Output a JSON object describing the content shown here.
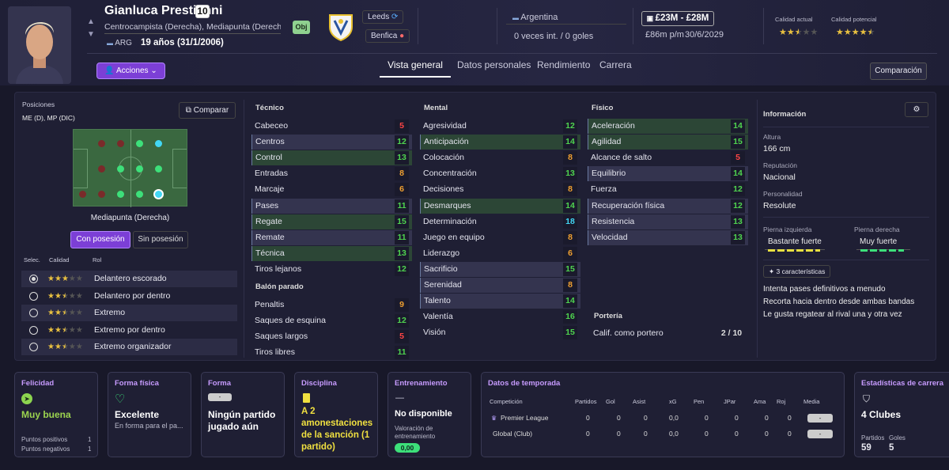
{
  "player": {
    "name": "Gianluca Prestianni",
    "number": "10",
    "positions_text": "Centrocampista (Derecha), Mediapunta (Derecha)",
    "obj": "Obj",
    "nationality_code": "ARG",
    "age": "19 años (31/1/2006)"
  },
  "actions": {
    "label": "Acciones"
  },
  "clubs": {
    "current": "Leeds",
    "parent": "Benfica"
  },
  "international": {
    "country": "Argentina",
    "caps": "0 veces int. / 0 goles"
  },
  "value": {
    "range": "£23M - £28M",
    "wage": "£86m p/m",
    "contract": "30/6/2029"
  },
  "quality": {
    "current_label": "Calidad actual",
    "potential_label": "Calidad potencial",
    "current_stars": 2.5,
    "potential_stars": 4.5
  },
  "tabs": [
    {
      "label": "Vista general"
    },
    {
      "label": "Datos personales"
    },
    {
      "label": "Rendimiento"
    },
    {
      "label": "Carrera"
    }
  ],
  "compare_top": "Comparación",
  "positions": {
    "title": "Posiciones",
    "value": "ME (D), MP (DIC)",
    "compare": "Comparar",
    "role_name": "Mediapunta (Derecha)",
    "with_ball": "Con posesión",
    "without_ball": "Sin posesión"
  },
  "roles_header": {
    "sel": "Selec.",
    "quality": "Calidad",
    "role": "Rol"
  },
  "roles": [
    {
      "name": "Delantero escorado",
      "stars": 3,
      "selected": true
    },
    {
      "name": "Delantero por dentro",
      "stars": 2.5,
      "selected": false
    },
    {
      "name": "Extremo",
      "stars": 2.5,
      "selected": false
    },
    {
      "name": "Extremo por dentro",
      "stars": 2.5,
      "selected": false
    },
    {
      "name": "Extremo organizador",
      "stars": 2.5,
      "selected": false
    }
  ],
  "attributes": {
    "tecnico": {
      "title": "Técnico",
      "items": [
        {
          "name": "Cabeceo",
          "value": "5",
          "state": ""
        },
        {
          "name": "Centros",
          "value": "12",
          "state": "hl"
        },
        {
          "name": "Control",
          "value": "13",
          "state": "key"
        },
        {
          "name": "Entradas",
          "value": "8",
          "state": ""
        },
        {
          "name": "Marcaje",
          "value": "6",
          "state": ""
        },
        {
          "name": "Pases",
          "value": "11",
          "state": "hl"
        },
        {
          "name": "Regate",
          "value": "15",
          "state": "key"
        },
        {
          "name": "Remate",
          "value": "11",
          "state": "hl"
        },
        {
          "name": "Técnica",
          "value": "13",
          "state": "key"
        },
        {
          "name": "Tiros lejanos",
          "value": "12",
          "state": ""
        }
      ]
    },
    "balon": {
      "title": "Balón parado",
      "items": [
        {
          "name": "Penaltis",
          "value": "9",
          "state": ""
        },
        {
          "name": "Saques de esquina",
          "value": "12",
          "state": ""
        },
        {
          "name": "Saques largos",
          "value": "5",
          "state": ""
        },
        {
          "name": "Tiros libres",
          "value": "11",
          "state": ""
        }
      ]
    },
    "mental": {
      "title": "Mental",
      "items": [
        {
          "name": "Agresividad",
          "value": "12",
          "state": ""
        },
        {
          "name": "Anticipación",
          "value": "14",
          "state": "key"
        },
        {
          "name": "Colocación",
          "value": "8",
          "state": ""
        },
        {
          "name": "Concentración",
          "value": "13",
          "state": ""
        },
        {
          "name": "Decisiones",
          "value": "8",
          "state": ""
        },
        {
          "name": "Desmarques",
          "value": "14",
          "state": "key"
        },
        {
          "name": "Determinación",
          "value": "18",
          "state": ""
        },
        {
          "name": "Juego en equipo",
          "value": "8",
          "state": ""
        },
        {
          "name": "Liderazgo",
          "value": "6",
          "state": ""
        },
        {
          "name": "Sacrificio",
          "value": "15",
          "state": "hl"
        },
        {
          "name": "Serenidad",
          "value": "8",
          "state": "hl"
        },
        {
          "name": "Talento",
          "value": "14",
          "state": "hl"
        },
        {
          "name": "Valentía",
          "value": "16",
          "state": ""
        },
        {
          "name": "Visión",
          "value": "15",
          "state": ""
        }
      ]
    },
    "fisico": {
      "title": "Físico",
      "items": [
        {
          "name": "Aceleración",
          "value": "14",
          "state": "key"
        },
        {
          "name": "Agilidad",
          "value": "15",
          "state": "key"
        },
        {
          "name": "Alcance de salto",
          "value": "5",
          "state": ""
        },
        {
          "name": "Equilibrio",
          "value": "14",
          "state": "hl"
        },
        {
          "name": "Fuerza",
          "value": "12",
          "state": ""
        },
        {
          "name": "Recuperación física",
          "value": "12",
          "state": "hl"
        },
        {
          "name": "Resistencia",
          "value": "13",
          "state": "hl"
        },
        {
          "name": "Velocidad",
          "value": "13",
          "state": "hl"
        }
      ]
    },
    "porteria": {
      "title": "Portería",
      "items": [
        {
          "name": "Calif. como portero",
          "value": "2 / 10"
        }
      ]
    }
  },
  "info": {
    "title": "Información",
    "height_label": "Altura",
    "height": "166 cm",
    "rep_label": "Reputación",
    "rep": "Nacional",
    "pers_label": "Personalidad",
    "pers": "Resolute",
    "left_foot_label": "Pierna izquierda",
    "left_foot": "Bastante fuerte",
    "right_foot_label": "Pierna derecha",
    "right_foot": "Muy fuerte",
    "traits_btn": "3 características",
    "traits": [
      "Intenta pases definitivos a menudo",
      "Recorta hacia dentro desde ambas bandas",
      "Le gusta regatear al rival una y otra vez"
    ]
  },
  "cards": {
    "felicidad": {
      "title": "Felicidad",
      "value": "Muy buena",
      "pos_label": "Puntos positivos",
      "pos": "1",
      "neg_label": "Puntos negativos",
      "neg": "1"
    },
    "forma_fisica": {
      "title": "Forma física",
      "value": "Excelente",
      "sub": "En forma para el pa..."
    },
    "forma": {
      "title": "Forma",
      "badge": "-",
      "value": "Ningún partido jugado aún"
    },
    "disciplina": {
      "title": "Disciplina",
      "value": "A 2 amonestaciones de la sanción (1 partido)"
    },
    "entrenamiento": {
      "title": "Entrenamiento",
      "dash": "—",
      "value": "No disponible",
      "sub": "Valoración de entrenamiento",
      "badge": "0,00"
    },
    "temporada": {
      "title": "Datos de temporada",
      "headers": [
        "Competición",
        "Partidos",
        "Gol",
        "Asist",
        "xG",
        "Pen",
        "JPar",
        "Ama",
        "Roj",
        "Media"
      ],
      "rows": [
        [
          "Premier League",
          "0",
          "0",
          "0",
          "0,0",
          "0",
          "0",
          "0",
          "0",
          "-"
        ],
        [
          "Global (Club)",
          "0",
          "0",
          "0",
          "0,0",
          "0",
          "0",
          "0",
          "0",
          "-"
        ]
      ]
    },
    "carrera": {
      "title": "Estadísticas de carrera",
      "value": "4 Clubes",
      "partidos_label": "Partidos",
      "partidos": "59",
      "goles_label": "Goles",
      "goles": "5"
    }
  },
  "colors": {
    "accent": "#7c3fd6",
    "green": "#4fd44f",
    "red": "#ff4545",
    "orange": "#f0a030",
    "cyan": "#42d7f5"
  }
}
